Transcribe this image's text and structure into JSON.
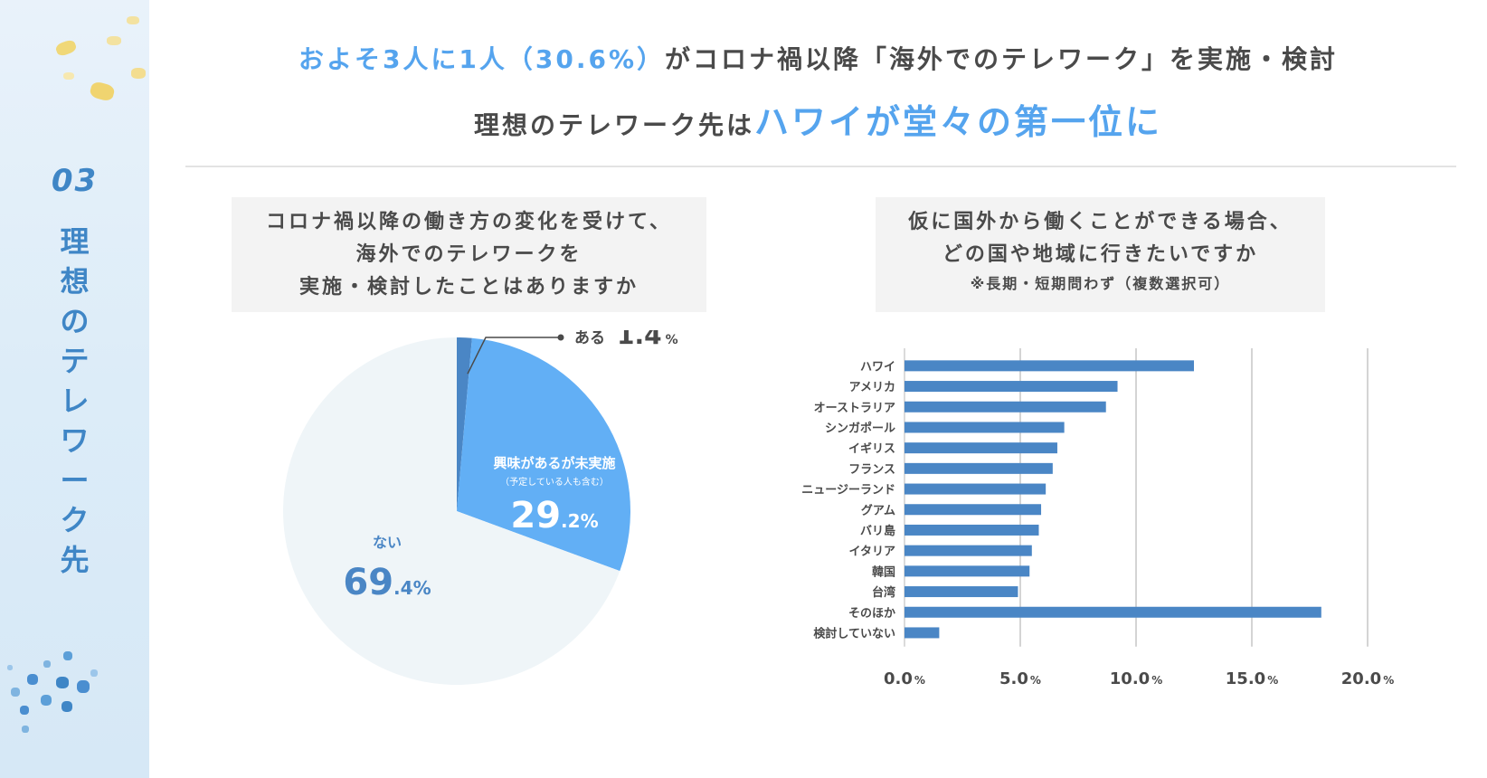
{
  "sidebar": {
    "number": "03",
    "title_chars": [
      "理",
      "想",
      "の",
      "テ",
      "レ",
      "ワ",
      "ー",
      "ク",
      "先"
    ]
  },
  "headline": {
    "line1_highlight": "およそ3人に1人（30.6%）",
    "line1_rest": "がコロナ禍以降「海外でのテレワーク」を実施・検討",
    "line2_prefix": "理想のテレワーク先は",
    "line2_highlight": "ハワイが堂々の第一位に"
  },
  "colors": {
    "accent": "#55a4ee",
    "dark_blue": "#4a86c5",
    "pie_light": "#eff5f8",
    "pie_mid": "#62aff5",
    "bar": "#4a86c5",
    "grid": "#d4d4d4"
  },
  "question_left": {
    "lines": [
      "コロナ禍以降の働き方の変化を受けて、",
      "海外でのテレワークを",
      "実施・検討したことはありますか"
    ]
  },
  "question_right": {
    "lines": [
      "仮に国外から働くことができる場合、",
      "どの国や地域に行きたいですか"
    ],
    "note": "※長期・短期問わず（複数選択可）"
  },
  "chart_data": [
    {
      "type": "pie",
      "title": "コロナ禍以降の働き方の変化を受けて、海外でのテレワークを実施・検討したことはありますか",
      "slices": [
        {
          "label": "ある",
          "value": 1.4,
          "int": "1",
          "dec": ".4",
          "unit": "%",
          "color": "#4a86c5"
        },
        {
          "label": "興味があるが未実施",
          "sublabel": "（予定している人も含む）",
          "value": 29.2,
          "int": "29",
          "dec": ".2",
          "unit": "%",
          "color": "#62aff5"
        },
        {
          "label": "ない",
          "value": 69.4,
          "int": "69",
          "dec": ".4",
          "unit": "%",
          "color": "#eff5f8"
        }
      ]
    },
    {
      "type": "bar",
      "orientation": "horizontal",
      "title": "仮に国外から働くことができる場合、どの国や地域に行きたいですか",
      "categories": [
        "ハワイ",
        "アメリカ",
        "オーストラリア",
        "シンガポール",
        "イギリス",
        "フランス",
        "ニュージーランド",
        "グアム",
        "バリ島",
        "イタリア",
        "韓国",
        "台湾",
        "そのほか",
        "検討していない"
      ],
      "values": [
        12.5,
        9.2,
        8.7,
        6.9,
        6.6,
        6.4,
        6.1,
        5.9,
        5.8,
        5.5,
        5.4,
        4.9,
        18.0,
        1.5
      ],
      "xlim": [
        0,
        20
      ],
      "ticks": [
        {
          "num": "0.0",
          "unit": "%",
          "value": 0
        },
        {
          "num": "5.0",
          "unit": "%",
          "value": 5
        },
        {
          "num": "10.0",
          "unit": "%",
          "value": 10
        },
        {
          "num": "15.0",
          "unit": "%",
          "value": 15
        },
        {
          "num": "20.0",
          "unit": "%",
          "value": 20
        }
      ],
      "grid": true
    }
  ]
}
